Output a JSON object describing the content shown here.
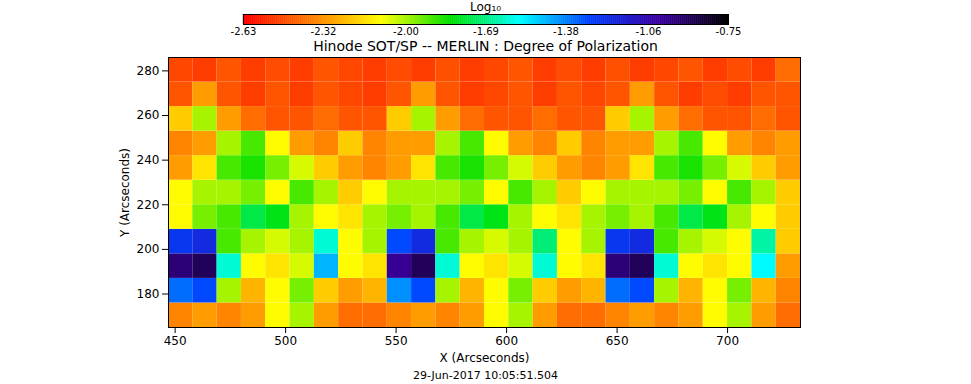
{
  "chart_data": {
    "type": "heatmap",
    "title": "Hinode SOT/SP -- MERLIN : Degree of Polarization",
    "x_label": "X (Arcseconds)",
    "y_label": "Y (Arcseconds)",
    "annotations": [
      "29-Jun-2017 10:05:51.504"
    ],
    "xlim": [
      447,
      733
    ],
    "ylim": [
      165,
      286
    ],
    "xticks": [
      450,
      500,
      550,
      600,
      650,
      700
    ],
    "yticks": [
      180,
      200,
      220,
      240,
      260,
      280
    ],
    "x": [
      452.5,
      463.5,
      474.5,
      485.5,
      496.5,
      507.5,
      518.5,
      529.5,
      540.5,
      551.5,
      562.5,
      573.5,
      584.5,
      595.5,
      606.5,
      617.5,
      628.5,
      639.5,
      650.5,
      661.5,
      672.5,
      683.5,
      694.5,
      705.5,
      716.5,
      727.5
    ],
    "y": [
      170.5,
      181.5,
      192.5,
      203.5,
      214.5,
      225.5,
      236.5,
      247.5,
      258.5,
      269.5,
      280.5
    ],
    "values": [
      [
        -2.35,
        -2.3,
        -2.35,
        -2.3,
        -2.1,
        -2.0,
        -2.3,
        -2.4,
        -2.4,
        -2.35,
        -2.3,
        -2.35,
        -2.3,
        -2.1,
        -2.0,
        -2.3,
        -2.4,
        -2.4,
        -2.35,
        -2.3,
        -2.35,
        -2.3,
        -2.1,
        -2.0,
        -2.3,
        -2.4
      ],
      [
        -1.35,
        -1.3,
        -2.0,
        -2.25,
        -2.1,
        -1.95,
        -2.2,
        -2.3,
        -2.25,
        -1.4,
        -1.3,
        -2.0,
        -2.25,
        -2.1,
        -1.95,
        -2.2,
        -2.3,
        -2.25,
        -1.35,
        -1.3,
        -2.0,
        -2.25,
        -2.1,
        -1.95,
        -2.25,
        -2.35
      ],
      [
        -0.95,
        -0.9,
        -1.6,
        -2.1,
        -2.15,
        -2.05,
        -1.45,
        -2.1,
        -2.15,
        -1.0,
        -0.9,
        -1.6,
        -2.1,
        -2.15,
        -2.05,
        -1.6,
        -2.1,
        -2.15,
        -0.95,
        -0.9,
        -1.6,
        -2.1,
        -2.15,
        -2.1,
        -1.55,
        -2.3
      ],
      [
        -1.25,
        -1.2,
        -1.9,
        -2.0,
        -2.05,
        -2.0,
        -1.6,
        -2.1,
        -2.0,
        -1.3,
        -1.2,
        -1.9,
        -2.0,
        -2.05,
        -2.0,
        -1.7,
        -2.1,
        -2.0,
        -1.25,
        -1.2,
        -1.9,
        -2.0,
        -2.05,
        -2.1,
        -1.65,
        -2.2
      ],
      [
        -2.1,
        -1.95,
        -1.9,
        -1.75,
        -1.8,
        -2.0,
        -2.1,
        -2.15,
        -2.0,
        -1.95,
        -2.0,
        -1.9,
        -1.75,
        -1.8,
        -2.0,
        -2.1,
        -2.15,
        -2.0,
        -1.95,
        -2.0,
        -1.9,
        -1.75,
        -1.8,
        -2.0,
        -2.1,
        -2.2
      ],
      [
        -2.1,
        -2.0,
        -2.0,
        -1.95,
        -2.1,
        -1.9,
        -2.0,
        -2.2,
        -2.1,
        -2.0,
        -2.0,
        -2.0,
        -1.95,
        -2.1,
        -1.9,
        -2.0,
        -2.2,
        -2.1,
        -2.0,
        -2.0,
        -2.0,
        -1.95,
        -2.1,
        -1.9,
        -2.0,
        -2.2
      ],
      [
        -2.3,
        -2.15,
        -1.9,
        -1.85,
        -1.95,
        -2.05,
        -2.2,
        -2.3,
        -2.35,
        -2.3,
        -2.15,
        -1.9,
        -1.85,
        -1.95,
        -2.05,
        -2.2,
        -2.3,
        -2.35,
        -2.3,
        -2.15,
        -1.9,
        -1.85,
        -1.95,
        -2.05,
        -2.2,
        -2.3
      ],
      [
        -2.35,
        -2.3,
        -2.0,
        -1.9,
        -2.1,
        -2.3,
        -2.35,
        -2.2,
        -2.35,
        -2.3,
        -2.3,
        -2.0,
        -1.9,
        -2.1,
        -2.3,
        -2.35,
        -2.2,
        -2.35,
        -2.3,
        -2.3,
        -2.0,
        -1.9,
        -2.1,
        -2.3,
        -2.35,
        -2.3
      ],
      [
        -2.2,
        -2.0,
        -2.3,
        -2.4,
        -2.45,
        -2.45,
        -2.4,
        -2.45,
        -2.45,
        -2.2,
        -2.0,
        -2.3,
        -2.4,
        -2.45,
        -2.45,
        -2.4,
        -2.45,
        -2.45,
        -2.2,
        -2.0,
        -2.3,
        -2.4,
        -2.45,
        -2.45,
        -2.4,
        -2.45
      ],
      [
        -2.45,
        -2.3,
        -2.45,
        -2.5,
        -2.45,
        -2.5,
        -2.45,
        -2.48,
        -2.5,
        -2.45,
        -2.3,
        -2.45,
        -2.5,
        -2.48,
        -2.45,
        -2.5,
        -2.45,
        -2.48,
        -2.45,
        -2.3,
        -2.45,
        -2.5,
        -2.47,
        -2.5,
        -2.45,
        -2.45
      ],
      [
        -2.48,
        -2.5,
        -2.45,
        -2.5,
        -2.47,
        -2.5,
        -2.45,
        -2.48,
        -2.5,
        -2.47,
        -2.5,
        -2.46,
        -2.5,
        -2.48,
        -2.45,
        -2.5,
        -2.47,
        -2.5,
        -2.46,
        -2.5,
        -2.48,
        -2.45,
        -2.5,
        -2.47,
        -2.5,
        -2.4
      ]
    ],
    "colorbar": {
      "label": "Log₁₀",
      "range": [
        -2.63,
        -0.75
      ],
      "ticks": [
        -2.63,
        -2.32,
        {
          "value": -2,
          "label": "-2.00"
        },
        -1.69,
        -1.38,
        -1.06,
        -0.75
      ]
    }
  }
}
